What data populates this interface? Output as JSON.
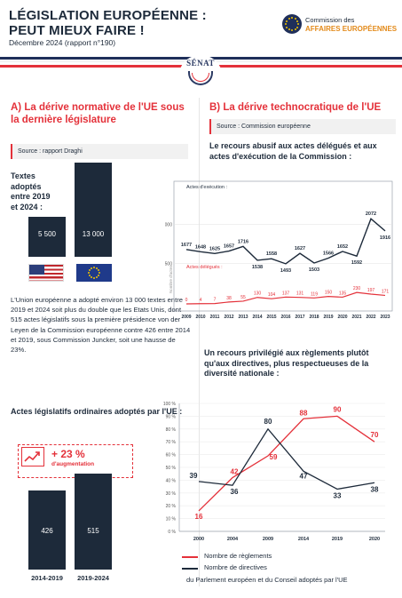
{
  "header": {
    "title_line1": "LÉGISLATION EUROPÉENNE :",
    "title_line2": "PEUT MIEUX FAIRE !",
    "subtitle": "Décembre 2024 (rapport n°190)",
    "logo_line1": "Commission des",
    "logo_line2": "AFFAIRES EUROPÉENNES",
    "senat": "SÉNAT"
  },
  "colors": {
    "navy": "#1d2a3a",
    "red": "#e4313a",
    "orange": "#e38a1a"
  },
  "sectionA": {
    "heading": "A) La dérive normative de l'UE sous la dernière législature",
    "source": "Source : rapport Draghi",
    "label_line1": "Textes",
    "label_line2": "adoptés",
    "label_line3": "entre 2019",
    "label_line4": "et 2024 :",
    "paragraph": "L'Union européenne a adopté environ 13 000 textes entre 2019 et 2024 soit plus du double que les Etats Unis, dont 515 actes législatifs sous la première présidence von der Leyen de la Commission européenne contre 426 entre 2014 et 2019, sous Commission Juncker, soit une hausse de 23%.",
    "heading2": "Actes législatifs ordinaires adoptés par l'UE :",
    "badge_pct": "+ 23 %",
    "badge_text": "d'augmentation"
  },
  "sectionB": {
    "heading": "B) La dérive technocratique de l'UE",
    "source": "Source : Commission européenne",
    "chart1_title": "Le recours abusif aux actes délégués et aux actes d'exécution de la Commission :",
    "chart2_title": "Un recours privilégié aux règlements plutôt qu'aux directives, plus respectueuses de la diversité nationale :",
    "chart2_caption": "du Parlement européen et du Conseil adoptés par l'UE"
  },
  "chart_data": [
    {
      "type": "bar",
      "categories": [
        "Etats-Unis",
        "UE"
      ],
      "values": [
        5500,
        13000
      ],
      "value_labels": [
        "5 500",
        "13 000"
      ],
      "category_icons": [
        "us-flag-icon",
        "eu-flag-icon"
      ]
    },
    {
      "type": "bar",
      "categories": [
        "2014-2019",
        "2019-2024"
      ],
      "values": [
        426,
        515
      ]
    },
    {
      "type": "line",
      "x": [
        "2009",
        "2010",
        "2011",
        "2012",
        "2013",
        "2014",
        "2015",
        "2016",
        "2017",
        "2018",
        "2019",
        "2020",
        "2021",
        "2022",
        "2023"
      ],
      "yticks": [
        "2000",
        "1500"
      ],
      "ylabel": "Nombre d'actes",
      "series": [
        {
          "name": "Actes d'exécution :",
          "color": "#1d2a3a",
          "values": [
            1677,
            1648,
            1625,
            1657,
            1716,
            1538,
            1558,
            1493,
            1627,
            1503,
            1566,
            1652,
            1592,
            2072,
            1916
          ]
        },
        {
          "name": "Actes délégués :",
          "color": "#e4313a",
          "values": [
            0,
            4,
            7,
            38,
            55,
            130,
            104,
            137,
            131,
            119,
            150,
            135,
            230,
            197,
            171
          ]
        }
      ]
    },
    {
      "type": "line",
      "x": [
        "2000",
        "2004",
        "2009",
        "2014",
        "2019",
        "2020"
      ],
      "yticks": [
        "100 %",
        "90 %",
        "80 %",
        "70 %",
        "60 %",
        "50 %",
        "40 %",
        "30 %",
        "20 %",
        "10 %",
        "0 %"
      ],
      "ylim": [
        0,
        100
      ],
      "series": [
        {
          "name": "Nombre de règlements",
          "color": "#e4313a",
          "values": [
            16,
            42,
            59,
            88,
            90,
            70
          ]
        },
        {
          "name": "Nombre de directives",
          "color": "#1d2a3a",
          "values": [
            39,
            36,
            80,
            47,
            33,
            38
          ]
        }
      ]
    }
  ]
}
